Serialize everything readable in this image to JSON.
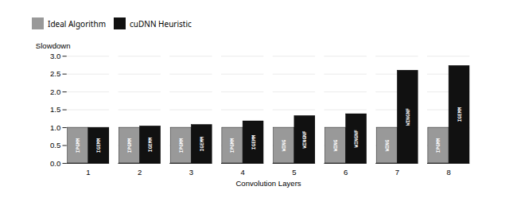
{
  "chart_data": {
    "type": "bar",
    "xlabel": "Convolution Layers",
    "ylabel": "Slowdown",
    "categories": [
      "1",
      "2",
      "3",
      "4",
      "5",
      "6",
      "7",
      "8"
    ],
    "series": [
      {
        "name": "Ideal Algorithm",
        "color": "#999999",
        "values": [
          1.0,
          1.0,
          1.0,
          1.0,
          1.0,
          1.0,
          1.0,
          1.0
        ],
        "bar_labels": [
          "IPGMM",
          "IPGMM",
          "IPGMM",
          "IPGMM",
          "WING",
          "WING",
          "WING",
          "IPGMM"
        ]
      },
      {
        "name": "cuDNN Heuristic",
        "color": "#111111",
        "values": [
          1.0,
          1.04,
          1.08,
          1.18,
          1.33,
          1.38,
          2.6,
          2.73
        ],
        "bar_labels": [
          "IGEMM",
          "IGEMM",
          "IGEMM",
          "IGEMM",
          "WINGNF",
          "WINGNF",
          "WINGNF",
          "IGEMM"
        ]
      }
    ],
    "ylim": [
      0.0,
      3.0
    ],
    "yticks": [
      {
        "value": 0.0,
        "label": "0.0"
      },
      0.5,
      {
        "value": 1.0,
        "label": "1.0"
      },
      1.5,
      {
        "value": 2.0,
        "label": "2.0"
      },
      2.5,
      {
        "value": 3.0,
        "label": "3.0"
      }
    ],
    "grid": true,
    "legend": "upper left"
  }
}
